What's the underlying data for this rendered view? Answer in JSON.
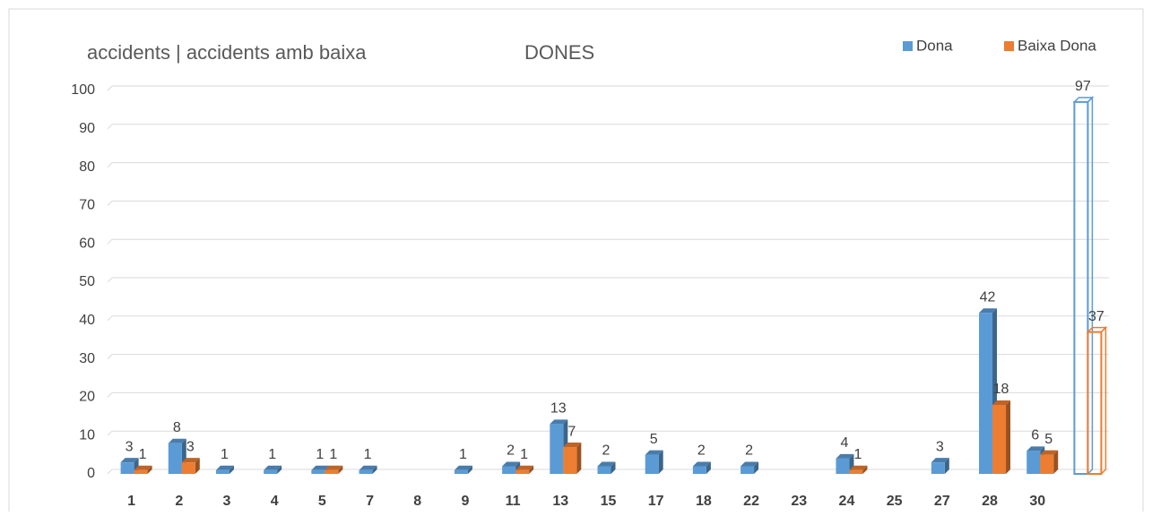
{
  "chart_data": {
    "type": "bar",
    "title": "accidents | accidents amb baixa",
    "subtitle": "DONES",
    "categories": [
      "1",
      "2",
      "3",
      "4",
      "5",
      "7",
      "8",
      "9",
      "11",
      "13",
      "15",
      "17",
      "18",
      "22",
      "23",
      "24",
      "25",
      "27",
      "28",
      "30",
      null
    ],
    "series": [
      {
        "name": "Dona",
        "color": "#5b9bd5",
        "values": [
          3,
          8,
          1,
          1,
          1,
          1,
          null,
          1,
          2,
          13,
          2,
          5,
          2,
          2,
          null,
          4,
          null,
          3,
          42,
          6,
          97
        ]
      },
      {
        "name": "Baixa Dona",
        "color": "#ed7d31",
        "values": [
          1,
          3,
          null,
          null,
          1,
          null,
          null,
          null,
          1,
          7,
          null,
          null,
          null,
          null,
          null,
          1,
          null,
          null,
          18,
          5,
          37
        ]
      }
    ],
    "ylim": [
      0,
      100
    ],
    "yticks": [
      0,
      10,
      20,
      30,
      40,
      50,
      60,
      70,
      80,
      90,
      100
    ],
    "grid": true,
    "legend": "top-right"
  }
}
